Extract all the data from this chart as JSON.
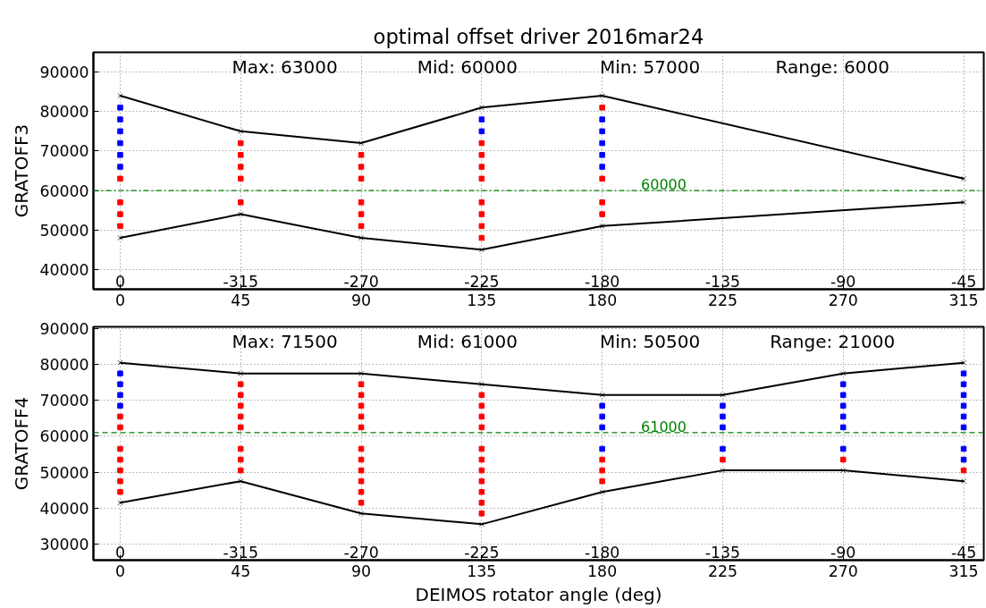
{
  "chart_data": [
    {
      "type": "line",
      "title": "optimal offset driver 2016mar24",
      "ylabel": "GRATOFF3",
      "series": [
        {
          "color": "#000000",
          "marker": "cross",
          "x": [
            0,
            45,
            90,
            135,
            180,
            315
          ],
          "values": [
            84000,
            75000,
            72000,
            81000,
            84000,
            63000
          ]
        },
        {
          "color": "#000000",
          "marker": "cross",
          "x": [
            0,
            45,
            90,
            135,
            180,
            315
          ],
          "values": [
            48000,
            54000,
            48000,
            45000,
            51000,
            57000
          ]
        },
        {
          "type": "scatter",
          "color": "#0000ff",
          "marker": "square",
          "x": [
            0,
            0,
            0,
            0,
            0,
            0,
            135,
            135,
            180,
            180,
            180,
            180,
            180
          ],
          "values": [
            81000,
            78000,
            75000,
            72000,
            69000,
            66000,
            78000,
            75000,
            78000,
            75000,
            72000,
            69000,
            66000
          ]
        },
        {
          "type": "scatter",
          "color": "#ff0000",
          "marker": "square",
          "x": [
            0,
            0,
            0,
            0,
            45,
            45,
            45,
            45,
            45,
            90,
            90,
            90,
            90,
            90,
            90,
            135,
            135,
            135,
            135,
            135,
            135,
            135,
            135,
            180,
            180,
            180,
            180
          ],
          "values": [
            63000,
            57000,
            54000,
            51000,
            72000,
            69000,
            66000,
            63000,
            57000,
            69000,
            66000,
            63000,
            57000,
            54000,
            51000,
            72000,
            69000,
            66000,
            63000,
            57000,
            54000,
            51000,
            48000,
            81000,
            63000,
            57000,
            54000
          ]
        }
      ],
      "xlim": [
        -10,
        322.5
      ],
      "xticks": [
        0,
        45,
        90,
        135,
        180,
        225,
        270,
        315
      ],
      "ylim": [
        35000,
        95000
      ],
      "yticks": [
        40000,
        50000,
        60000,
        70000,
        80000,
        90000
      ],
      "ref_lines": [
        {
          "axis": "y",
          "value": 60000,
          "label": "60000",
          "color": "#008000",
          "line_style": "dashdot"
        }
      ],
      "annotations": [
        "Max: 63000",
        "Mid: 60000",
        "Min: 57000",
        "Range: 6000",
        "0",
        "-315",
        "-270",
        "-225",
        "-180",
        "-135",
        "-90",
        "-45"
      ],
      "grid": true
    },
    {
      "type": "line",
      "xlabel": "DEIMOS rotator angle (deg)",
      "ylabel": "GRATOFF4",
      "series": [
        {
          "color": "#000000",
          "marker": "cross",
          "x": [
            0,
            45,
            90,
            135,
            180,
            225,
            270,
            315
          ],
          "values": [
            80500,
            77500,
            77500,
            74500,
            71500,
            71500,
            77500,
            80500
          ]
        },
        {
          "color": "#000000",
          "marker": "cross",
          "x": [
            0,
            45,
            90,
            135,
            180,
            225,
            270,
            315
          ],
          "values": [
            41500,
            47500,
            38500,
            35500,
            44500,
            50500,
            50500,
            47500
          ]
        },
        {
          "type": "scatter",
          "color": "#0000ff",
          "marker": "square",
          "x": [
            0,
            0,
            0,
            0,
            180,
            180,
            180,
            180,
            225,
            225,
            225,
            225,
            270,
            270,
            270,
            270,
            270,
            270,
            315,
            315,
            315,
            315,
            315,
            315,
            315,
            315
          ],
          "values": [
            77500,
            74500,
            71500,
            68500,
            68500,
            65500,
            62500,
            56500,
            68500,
            65500,
            62500,
            56500,
            74500,
            71500,
            68500,
            65500,
            62500,
            56500,
            77500,
            74500,
            71500,
            68500,
            65500,
            62500,
            56500,
            53500
          ]
        },
        {
          "type": "scatter",
          "color": "#ff0000",
          "marker": "square",
          "x": [
            0,
            0,
            0,
            0,
            0,
            0,
            0,
            45,
            45,
            45,
            45,
            45,
            45,
            45,
            45,
            90,
            90,
            90,
            90,
            90,
            90,
            90,
            90,
            90,
            90,
            90,
            135,
            135,
            135,
            135,
            135,
            135,
            135,
            135,
            135,
            135,
            135,
            180,
            180,
            180,
            225,
            270,
            315
          ],
          "values": [
            65500,
            62500,
            56500,
            53500,
            50500,
            47500,
            44500,
            74500,
            71500,
            68500,
            65500,
            62500,
            56500,
            53500,
            50500,
            74500,
            71500,
            68500,
            65500,
            62500,
            56500,
            53500,
            50500,
            47500,
            44500,
            41500,
            71500,
            68500,
            65500,
            62500,
            56500,
            53500,
            50500,
            47500,
            44500,
            41500,
            38500,
            53500,
            50500,
            47500,
            53500,
            53500,
            50500
          ]
        }
      ],
      "xlim": [
        -10,
        322.5
      ],
      "xticks": [
        0,
        45,
        90,
        135,
        180,
        225,
        270,
        315
      ],
      "ylim": [
        25500,
        90500
      ],
      "yticks": [
        30000,
        40000,
        50000,
        60000,
        70000,
        80000,
        90000
      ],
      "ref_lines": [
        {
          "axis": "y",
          "value": 61000,
          "label": "61000",
          "color": "#008000",
          "line_style": "dashed"
        }
      ],
      "annotations": [
        "Max: 71500",
        "Mid: 61000",
        "Min: 50500",
        "Range: 21000",
        "0",
        "-315",
        "-270",
        "-225",
        "-180",
        "-135",
        "-90",
        "-45"
      ],
      "grid": true
    }
  ]
}
